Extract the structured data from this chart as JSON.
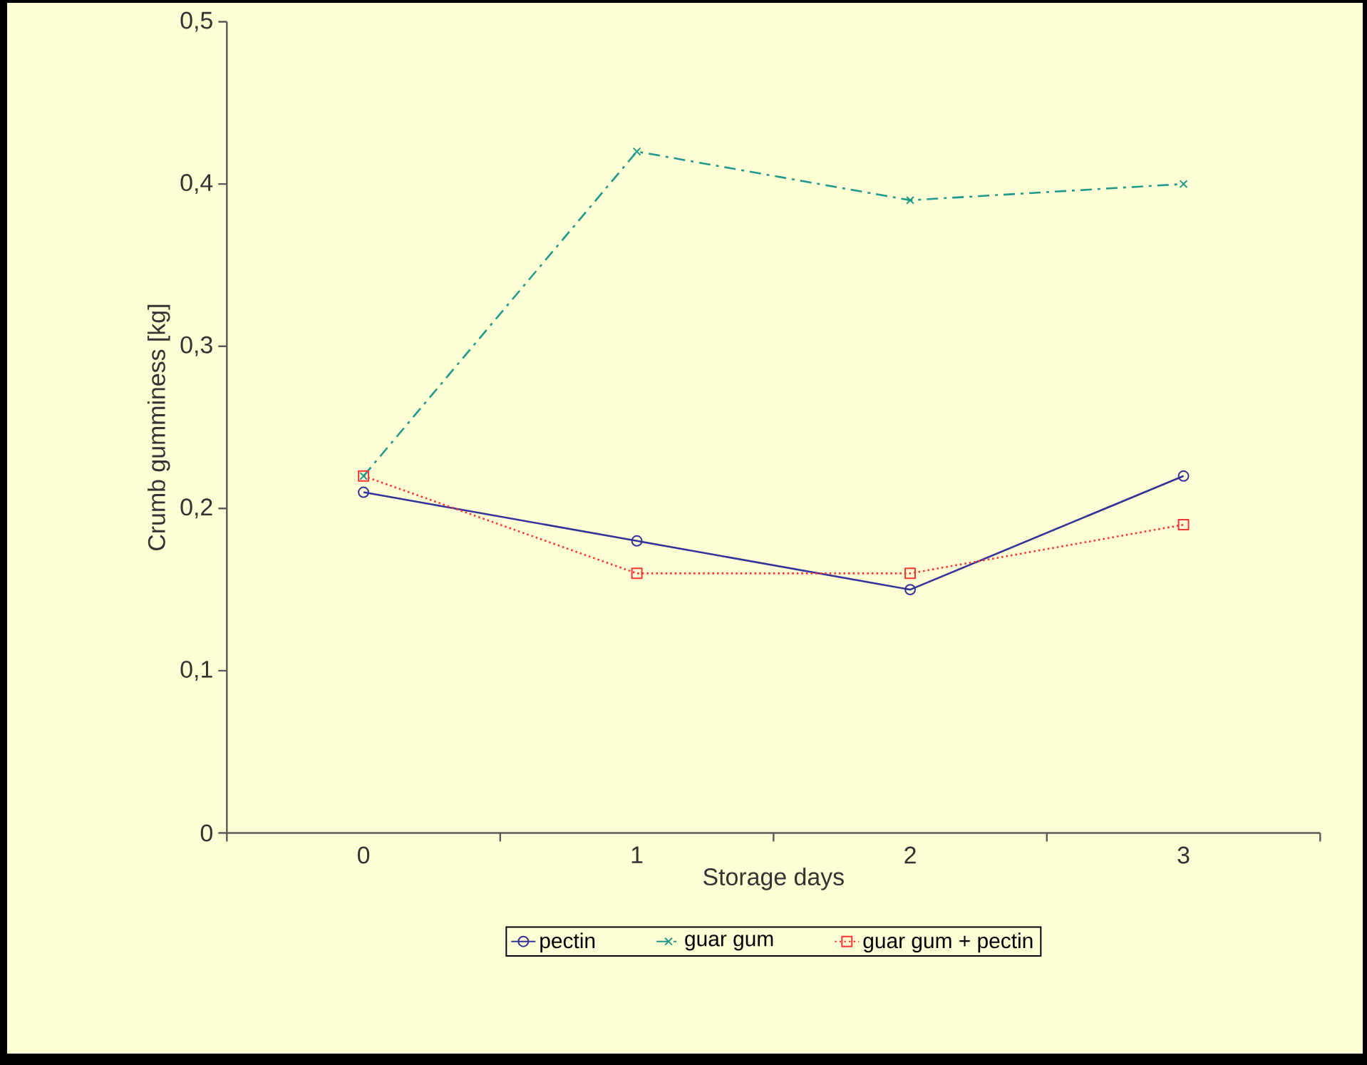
{
  "chart_data": {
    "type": "line",
    "xlabel": "Storage days",
    "ylabel": "Crumb gumminess [kg]",
    "categories": [
      "0",
      "1",
      "2",
      "3"
    ],
    "ylim": [
      0,
      0.5
    ],
    "yticks": [
      0,
      {
        "value": 0.1,
        "label": "0,1"
      },
      {
        "value": 0.2,
        "label": "0,2"
      },
      {
        "value": 0.3,
        "label": "0,3"
      },
      {
        "value": 0.4,
        "label": "0,4"
      },
      {
        "value": 0.5,
        "label": "0,5"
      }
    ],
    "grid": false,
    "legend": "bottom",
    "series": [
      {
        "name": "pectin",
        "color": "#333399",
        "marker": "circle",
        "line_style": "solid",
        "values": [
          0.21,
          0.18,
          0.15,
          0.22
        ]
      },
      {
        "name": "guar gum",
        "color": "#1f9a8a",
        "marker": "cross",
        "line_style": "dashdot",
        "values": [
          0.22,
          0.42,
          0.39,
          0.4
        ]
      },
      {
        "name": "guar gum + pectin",
        "color": "#ff3333",
        "marker": "square",
        "line_style": "dotted",
        "values": [
          0.22,
          0.16,
          0.16,
          0.19
        ]
      }
    ]
  }
}
